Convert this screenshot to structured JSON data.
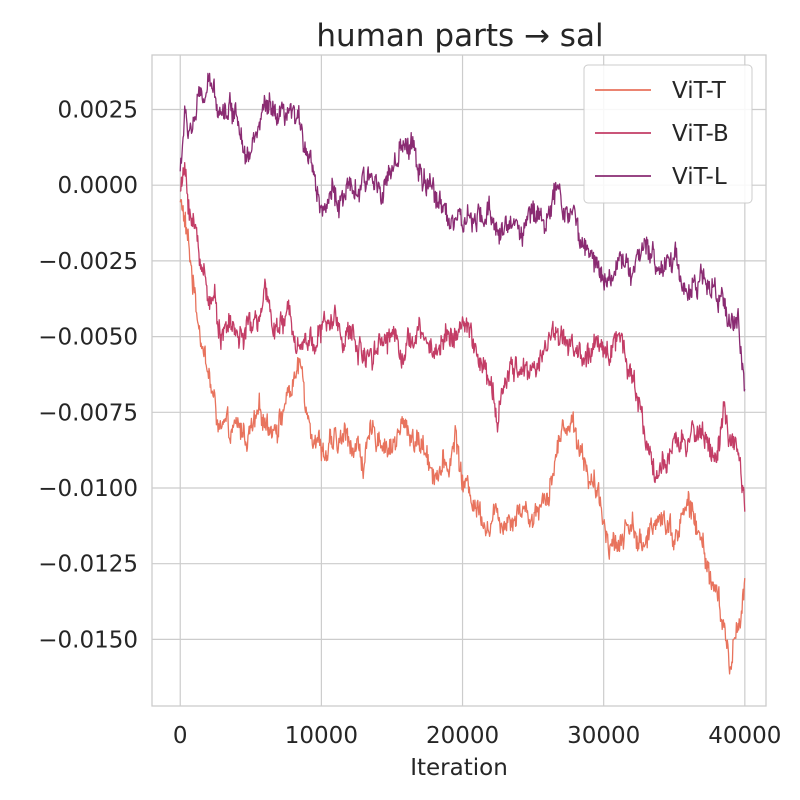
{
  "chart_data": {
    "type": "line",
    "title": "human parts → sal",
    "xlabel": "Iteration",
    "ylabel": "",
    "xlim": [
      -2000,
      41500
    ],
    "ylim": [
      -0.0172,
      0.0043
    ],
    "x_ticks": [
      0,
      10000,
      20000,
      30000,
      40000
    ],
    "x_tick_labels": [
      "0",
      "10000",
      "20000",
      "30000",
      "40000"
    ],
    "y_ticks": [
      0.0025,
      0.0,
      -0.0025,
      -0.005,
      -0.0075,
      -0.01,
      -0.0125,
      -0.015
    ],
    "y_tick_labels": [
      "0.0025",
      "0.0000",
      "−0.0025",
      "−0.0050",
      "−0.0075",
      "−0.0100",
      "−0.0125",
      "−0.0150"
    ],
    "grid": true,
    "legend": {
      "placement": "top-right"
    },
    "series": [
      {
        "name": "ViT-T",
        "color": "#e8735d",
        "x": [
          0,
          300,
          600,
          1000,
          1500,
          2000,
          2500,
          3000,
          3500,
          4000,
          5000,
          6000,
          7000,
          8000,
          8500,
          9000,
          10000,
          11000,
          12000,
          13000,
          14000,
          15000,
          16000,
          17000,
          18000,
          19000,
          19500,
          20000,
          21000,
          22000,
          23000,
          24000,
          25000,
          26000,
          27000,
          27500,
          28000,
          29000,
          30000,
          31000,
          32000,
          33000,
          34000,
          35000,
          36000,
          37000,
          38000,
          38500,
          39000,
          39500,
          40000
        ],
        "y": [
          -0.0005,
          -0.0012,
          -0.0022,
          -0.0035,
          -0.0048,
          -0.0062,
          -0.0075,
          -0.0082,
          -0.0085,
          -0.0083,
          -0.0082,
          -0.0078,
          -0.0076,
          -0.0065,
          -0.006,
          -0.0072,
          -0.0085,
          -0.0088,
          -0.0083,
          -0.009,
          -0.0082,
          -0.0085,
          -0.008,
          -0.0085,
          -0.0092,
          -0.0095,
          -0.0082,
          -0.0098,
          -0.0105,
          -0.011,
          -0.0108,
          -0.0105,
          -0.0108,
          -0.01,
          -0.0082,
          -0.0076,
          -0.008,
          -0.0095,
          -0.0112,
          -0.0118,
          -0.011,
          -0.0122,
          -0.0105,
          -0.0115,
          -0.0105,
          -0.012,
          -0.0135,
          -0.0148,
          -0.016,
          -0.0145,
          -0.013
        ]
      },
      {
        "name": "ViT-B",
        "color": "#c33d66",
        "x": [
          0,
          300,
          600,
          1000,
          1500,
          2000,
          2500,
          3000,
          3500,
          4000,
          5000,
          6000,
          7000,
          8000,
          9000,
          10000,
          11000,
          12000,
          13000,
          14000,
          15000,
          16000,
          17000,
          18000,
          19000,
          20000,
          21000,
          22000,
          22500,
          23000,
          24000,
          25000,
          26000,
          27000,
          28000,
          29000,
          30000,
          31000,
          32000,
          33000,
          34000,
          35000,
          36000,
          37000,
          38000,
          38500,
          39000,
          39500,
          40000
        ],
        "y": [
          -0.0002,
          0.0004,
          -0.0005,
          -0.0015,
          -0.0025,
          -0.0035,
          -0.004,
          -0.0048,
          -0.0045,
          -0.005,
          -0.0048,
          -0.004,
          -0.0047,
          -0.0045,
          -0.005,
          -0.0048,
          -0.0045,
          -0.005,
          -0.0055,
          -0.005,
          -0.0048,
          -0.0052,
          -0.005,
          -0.0055,
          -0.0048,
          -0.0047,
          -0.0055,
          -0.0068,
          -0.008,
          -0.0065,
          -0.006,
          -0.0062,
          -0.005,
          -0.0048,
          -0.0055,
          -0.0058,
          -0.0055,
          -0.0048,
          -0.006,
          -0.0085,
          -0.0095,
          -0.009,
          -0.0085,
          -0.008,
          -0.009,
          -0.0075,
          -0.0085,
          -0.0092,
          -0.0108
        ]
      },
      {
        "name": "ViT-L",
        "color": "#8a2b72",
        "x": [
          0,
          300,
          600,
          1000,
          1500,
          2000,
          3000,
          4000,
          5000,
          6000,
          7000,
          8000,
          9000,
          10000,
          11000,
          12000,
          13000,
          14000,
          15000,
          16000,
          16500,
          17000,
          18000,
          19000,
          20000,
          21000,
          22000,
          23000,
          24000,
          25000,
          26000,
          27000,
          28000,
          28500,
          29000,
          30000,
          31000,
          32000,
          33000,
          34000,
          35000,
          36000,
          37000,
          38000,
          39000,
          39500,
          40000
        ],
        "y": [
          0.0005,
          0.0022,
          0.0018,
          0.0022,
          0.0028,
          0.003,
          0.0028,
          0.0025,
          0.0012,
          0.0024,
          0.0018,
          0.002,
          0.0015,
          -0.0005,
          -0.0003,
          -0.0005,
          -0.0002,
          0.0002,
          0.0005,
          0.001,
          0.0015,
          0.0002,
          -0.0005,
          -0.0008,
          -0.0012,
          -0.0015,
          -0.001,
          -0.0015,
          -0.0012,
          -0.001,
          -0.0008,
          -0.0005,
          -0.0012,
          -0.002,
          -0.0025,
          -0.0028,
          -0.0026,
          -0.0027,
          -0.0025,
          -0.0025,
          -0.0022,
          -0.0035,
          -0.0032,
          -0.0038,
          -0.0042,
          -0.0045,
          -0.0063
        ]
      }
    ]
  }
}
